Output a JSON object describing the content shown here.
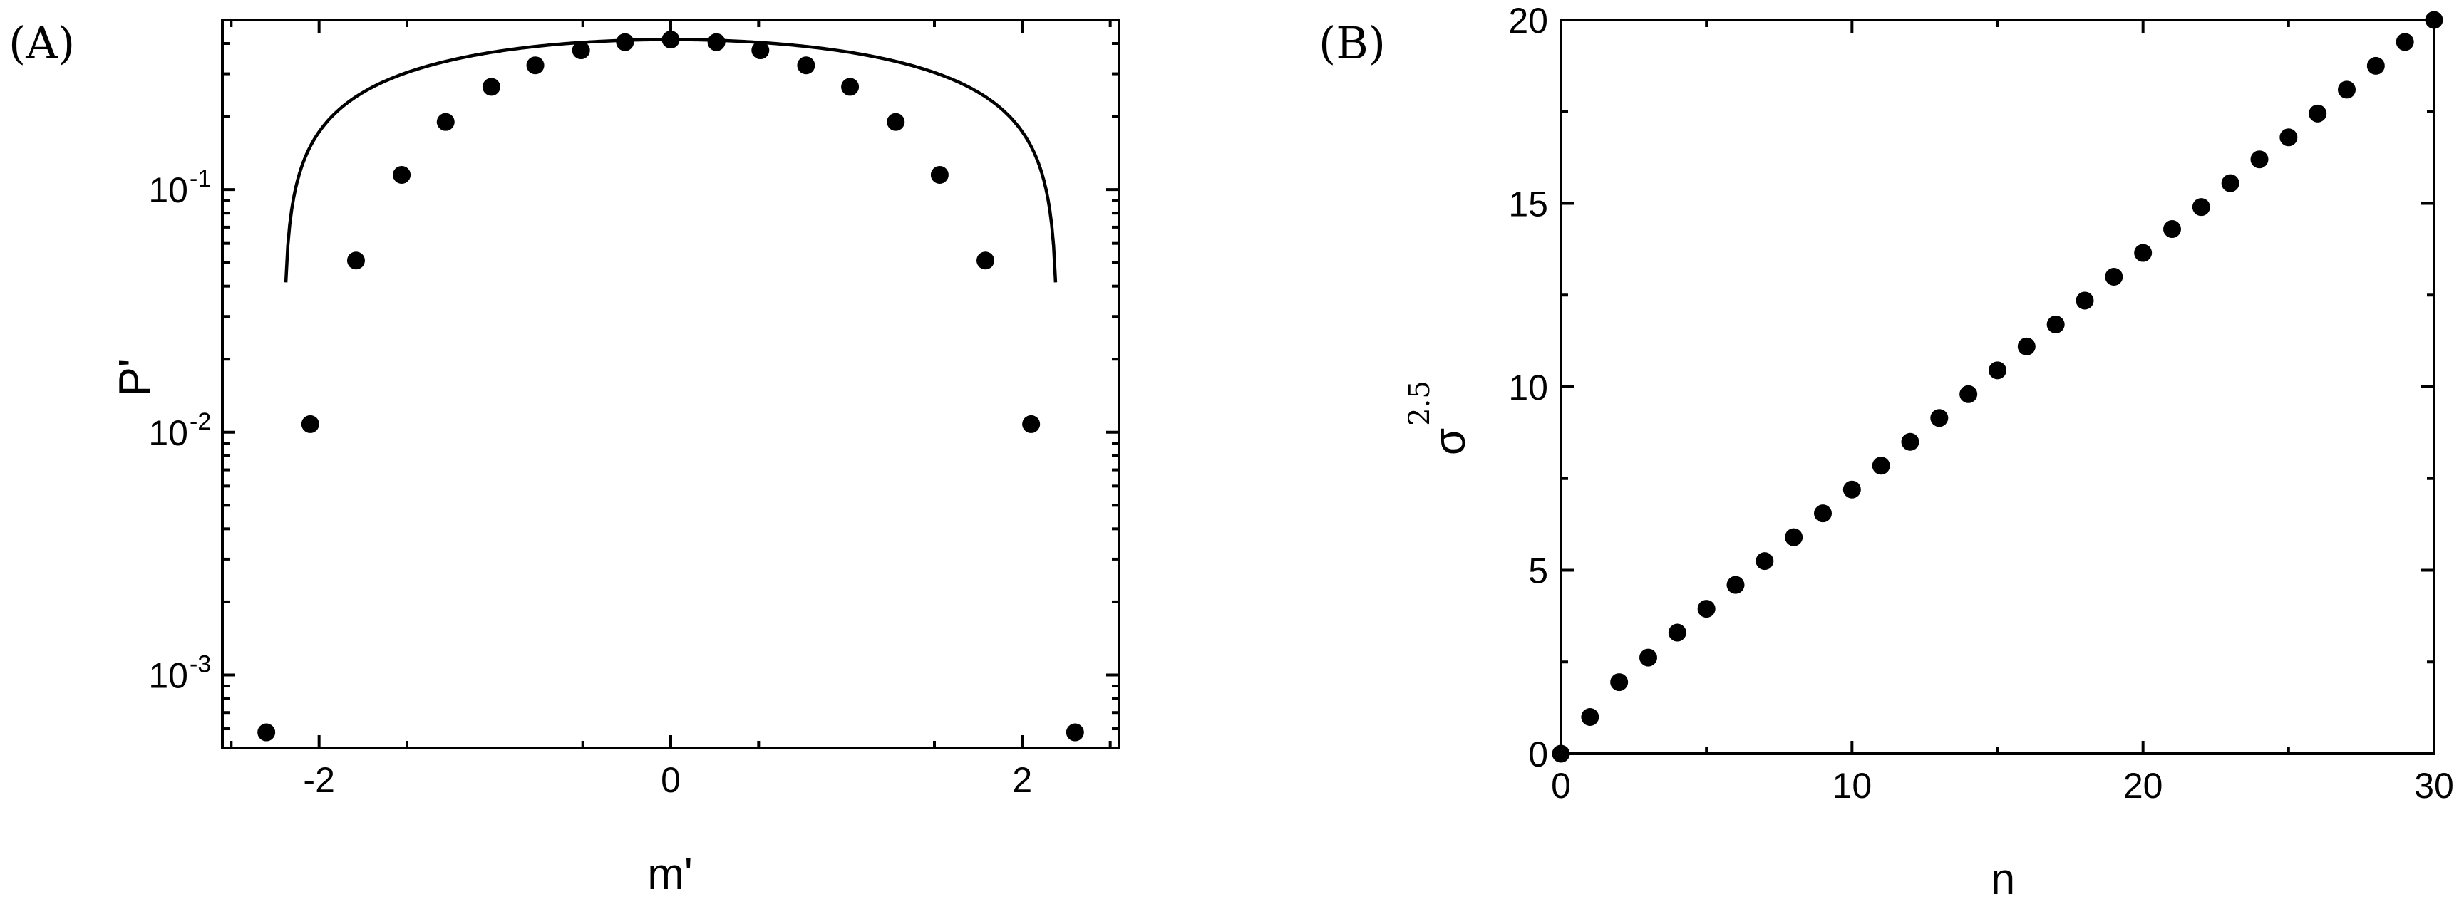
{
  "chart_data": [
    {
      "panel": "(A)",
      "type": "scatter",
      "xlabel": "m'",
      "ylabel": "P'",
      "xlim": [
        -2.55,
        2.55
      ],
      "ylim": [
        0.0005,
        0.5
      ],
      "yscale": "log",
      "x_ticks": [
        -2,
        0,
        2
      ],
      "x_tick_labels": [
        "-2",
        "0",
        "2"
      ],
      "y_ticks": [
        0.1,
        0.01,
        0.001
      ],
      "y_tick_labels": [
        {
          "base": "10",
          "exp": "-1"
        },
        {
          "base": "10",
          "exp": "-2"
        },
        {
          "base": "10",
          "exp": "-3"
        }
      ],
      "points": {
        "x": [
          -2.3,
          -2.05,
          -1.79,
          -1.53,
          -1.28,
          -1.02,
          -0.77,
          -0.51,
          -0.26,
          0.0,
          0.26,
          0.51,
          0.77,
          1.02,
          1.28,
          1.53,
          1.79,
          2.05,
          2.3
        ],
        "y": [
          0.00058,
          0.0108,
          0.051,
          0.115,
          0.19,
          0.265,
          0.325,
          0.375,
          0.405,
          0.415,
          0.405,
          0.375,
          0.325,
          0.265,
          0.19,
          0.115,
          0.051,
          0.0108,
          0.00058
        ]
      },
      "fit_curve": {
        "form": "semicircle",
        "radius": 2.2,
        "peak": 0.415
      },
      "grid": false
    },
    {
      "panel": "(B)",
      "type": "scatter",
      "xlabel": "n",
      "ylabel": {
        "base": "σ",
        "sup": "2.5"
      },
      "xlim": [
        0,
        30
      ],
      "ylim": [
        0,
        20
      ],
      "x_ticks": [
        0,
        10,
        20,
        30
      ],
      "x_tick_labels": [
        "0",
        "10",
        "20",
        "30"
      ],
      "y_ticks": [
        0,
        5,
        10,
        15,
        20
      ],
      "y_tick_labels": [
        "0",
        "5",
        "10",
        "15",
        "20"
      ],
      "points": {
        "x": [
          0,
          1,
          2,
          3,
          4,
          5,
          6,
          7,
          8,
          9,
          10,
          11,
          12,
          13,
          14,
          15,
          16,
          17,
          18,
          19,
          20,
          21,
          22,
          23,
          24,
          25,
          26,
          27,
          28,
          29,
          30
        ],
        "y": [
          0.0,
          1.0,
          1.95,
          2.62,
          3.3,
          3.95,
          4.6,
          5.25,
          5.9,
          6.55,
          7.2,
          7.85,
          8.5,
          9.15,
          9.8,
          10.45,
          11.1,
          11.7,
          12.35,
          13.0,
          13.65,
          14.3,
          14.9,
          15.55,
          16.2,
          16.8,
          17.45,
          18.1,
          18.75,
          19.4,
          20.0
        ]
      },
      "grid": false
    }
  ]
}
